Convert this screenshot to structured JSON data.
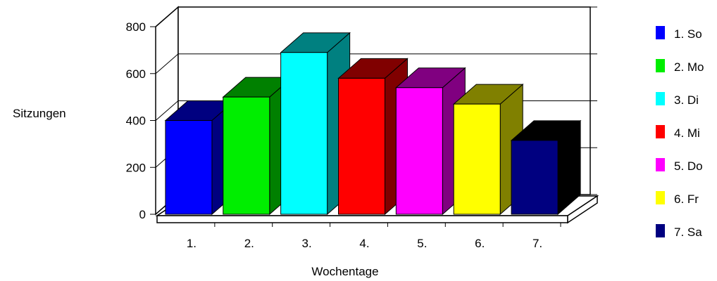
{
  "chart_data": {
    "type": "bar",
    "title": "",
    "xlabel": "Wochentage",
    "ylabel": "Sitzungen",
    "ylim": [
      0,
      800
    ],
    "y_ticks": [
      "0",
      "200",
      "400",
      "600",
      "800"
    ],
    "categories": [
      "1.",
      "2.",
      "3.",
      "4.",
      "5.",
      "6.",
      "7."
    ],
    "values": [
      400,
      500,
      690,
      580,
      540,
      470,
      315
    ],
    "colors": [
      "#0000ff",
      "#00ee00",
      "#00ffff",
      "#ff0000",
      "#ff00ff",
      "#ffff00",
      "#000080"
    ],
    "side_colors": [
      "#000080",
      "#008000",
      "#008080",
      "#800000",
      "#800080",
      "#808000",
      "#000000"
    ],
    "legend": [
      "1. So",
      "2. Mo",
      "3. Di",
      "4. Mi",
      "5. Do",
      "6. Fr",
      "7. Sa"
    ],
    "legend_colors": [
      "#0000ff",
      "#00ee00",
      "#00ffff",
      "#ff0000",
      "#ff00ff",
      "#ffff00",
      "#000080"
    ],
    "legend_position": "right",
    "grid": true,
    "style": "3d"
  }
}
